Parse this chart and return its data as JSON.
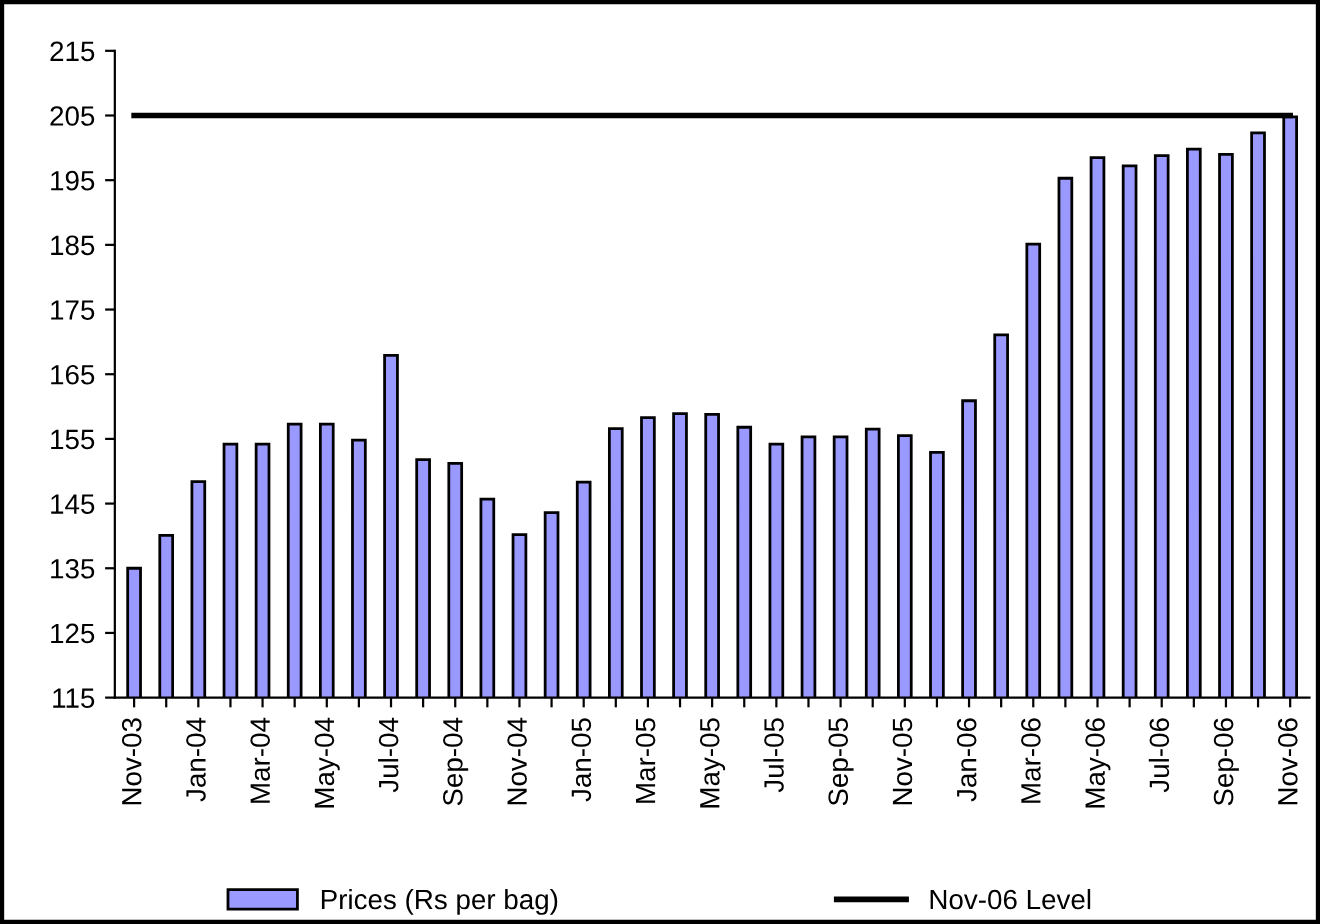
{
  "chart_data": {
    "type": "bar",
    "categories": [
      "Nov-03",
      null,
      "Jan-04",
      null,
      "Mar-04",
      null,
      "May-04",
      null,
      "Jul-04",
      null,
      "Sep-04",
      null,
      "Nov-04",
      null,
      "Jan-05",
      null,
      "Mar-05",
      null,
      "May-05",
      null,
      "Jul-05",
      null,
      "Sep-05",
      null,
      "Nov-05",
      null,
      "Jan-06",
      null,
      "Mar-06",
      null,
      "May-06",
      null,
      "Jul-06",
      null,
      "Sep-06",
      null,
      "Nov-06"
    ],
    "series": [
      {
        "name": "Prices (Rs per bag)",
        "color": "#9999ff",
        "values": [
          135.0,
          140.1,
          148.4,
          154.2,
          154.2,
          157.3,
          157.3,
          154.8,
          167.9,
          151.8,
          151.2,
          145.7,
          140.2,
          143.6,
          148.3,
          156.6,
          158.3,
          158.9,
          158.8,
          156.8,
          154.2,
          155.3,
          155.3,
          156.5,
          155.5,
          152.9,
          160.9,
          171.1,
          185.1,
          195.3,
          198.5,
          197.2,
          198.8,
          199.8,
          199.0,
          202.3,
          204.8
        ]
      }
    ],
    "ref_lines": [
      {
        "axis": "y",
        "value": 205,
        "label": "Nov-06 Level",
        "color": "#000000",
        "line_style": "solid"
      }
    ],
    "ylim": [
      115,
      215
    ],
    "yticks": [
      115,
      125,
      135,
      145,
      155,
      165,
      175,
      185,
      195,
      205,
      215
    ],
    "grid": false,
    "legend": "bottom"
  }
}
